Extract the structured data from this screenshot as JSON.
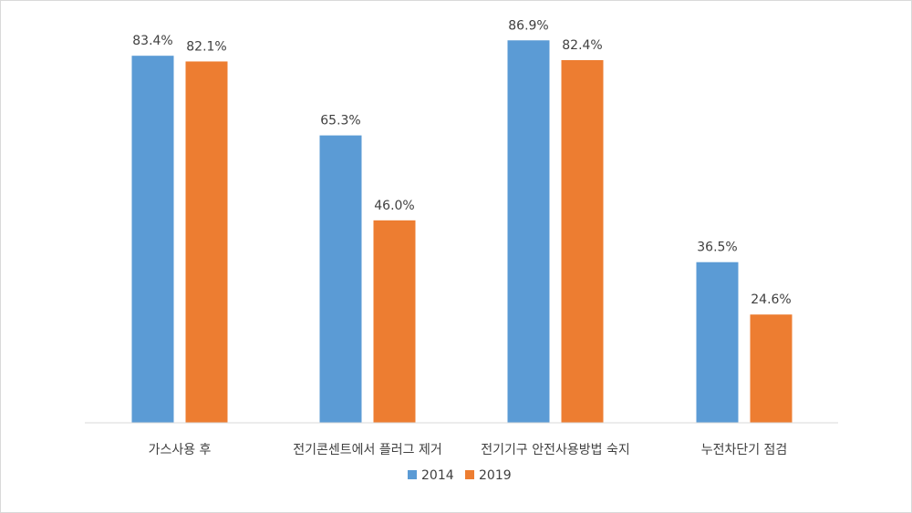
{
  "chart_data": {
    "type": "bar",
    "categories": [
      "가스사용 후",
      "전기콘센트에서 플러그 제거",
      "전기기구 안전사용방법 숙지",
      "누전차단기 점검"
    ],
    "series": [
      {
        "name": "2014",
        "values": [
          83.4,
          65.3,
          86.9,
          36.5
        ],
        "labels": [
          "83.4%",
          "65.3%",
          "86.9%",
          "36.5%"
        ],
        "color": "#5b9bd5"
      },
      {
        "name": "2019",
        "values": [
          82.1,
          46.0,
          82.4,
          24.6
        ],
        "labels": [
          "82.1%",
          "46.0%",
          "82.4%",
          "24.6%"
        ],
        "color": "#ed7d31"
      }
    ],
    "ylim": [
      0,
      100
    ],
    "grid": false,
    "legend": "bottom"
  }
}
